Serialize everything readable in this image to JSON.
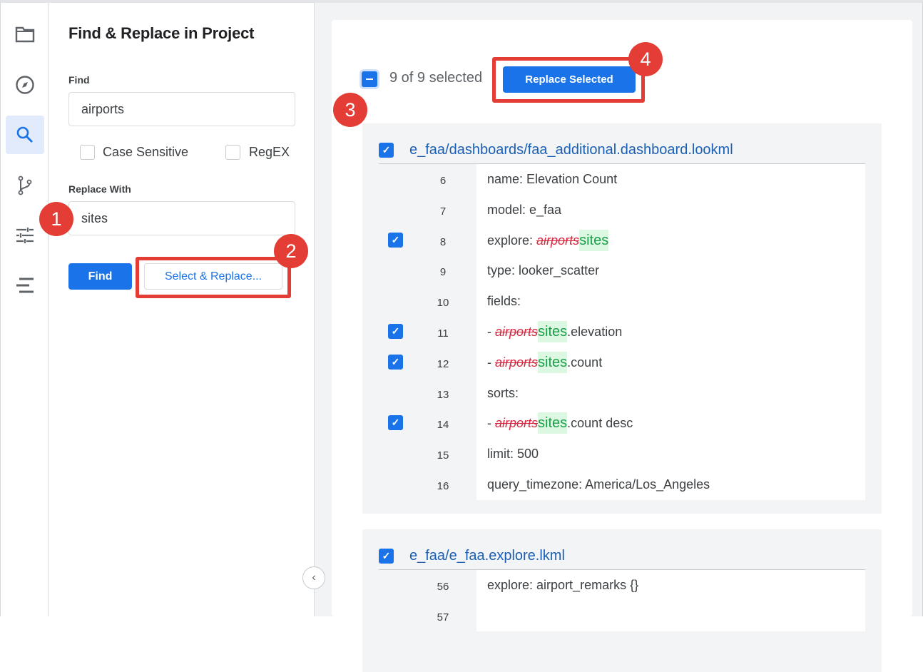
{
  "sidebar": {
    "icons": [
      "folder-icon",
      "compass-icon",
      "search-icon",
      "git-branch-icon",
      "sliders-icon",
      "align-icon"
    ],
    "active": "search-icon"
  },
  "panel": {
    "title": "Find & Replace in Project",
    "find_label": "Find",
    "find_value": "airports",
    "case_sensitive_label": "Case Sensitive",
    "case_sensitive_checked": false,
    "regex_label": "RegEX",
    "regex_checked": false,
    "replace_label": "Replace With",
    "replace_value": "sites",
    "find_button": "Find",
    "select_replace_button": "Select & Replace..."
  },
  "annotations": [
    "1",
    "2",
    "3",
    "4"
  ],
  "main": {
    "selection_text": "9 of 9 selected",
    "replace_selected_button": "Replace Selected",
    "files": [
      {
        "path": "e_faa/dashboards/faa_additional.dashboard.lookml",
        "checked": true,
        "lines": [
          {
            "num": "6",
            "pre": "name: Elevation Count",
            "checked": false
          },
          {
            "num": "7",
            "pre": "model: e_faa",
            "checked": false
          },
          {
            "num": "8",
            "pre": "explore: ",
            "del": "airports",
            "add": "sites",
            "post": "",
            "checked": true
          },
          {
            "num": "9",
            "pre": "type: looker_scatter",
            "checked": false
          },
          {
            "num": "10",
            "pre": "fields:",
            "checked": false
          },
          {
            "num": "11",
            "pre": "- ",
            "del": "airports",
            "add": "sites",
            "post": ".elevation",
            "checked": true
          },
          {
            "num": "12",
            "pre": "- ",
            "del": "airports",
            "add": "sites",
            "post": ".count",
            "checked": true
          },
          {
            "num": "13",
            "pre": "sorts:",
            "checked": false
          },
          {
            "num": "14",
            "pre": "- ",
            "del": "airports",
            "add": "sites",
            "post": ".count desc",
            "checked": true
          },
          {
            "num": "15",
            "pre": "limit: 500",
            "checked": false
          },
          {
            "num": "16",
            "pre": "query_timezone: America/Los_Angeles",
            "checked": false
          }
        ]
      },
      {
        "path": "e_faa/e_faa.explore.lkml",
        "checked": true,
        "lines": [
          {
            "num": "56",
            "pre": "explore: airport_remarks {}",
            "checked": false
          },
          {
            "num": "57",
            "pre": "",
            "checked": false
          }
        ]
      }
    ]
  },
  "colors": {
    "accent": "#1a73e8",
    "annotation": "#e33d35",
    "deleted": "#d7263d",
    "added": "#1e9e4a"
  }
}
